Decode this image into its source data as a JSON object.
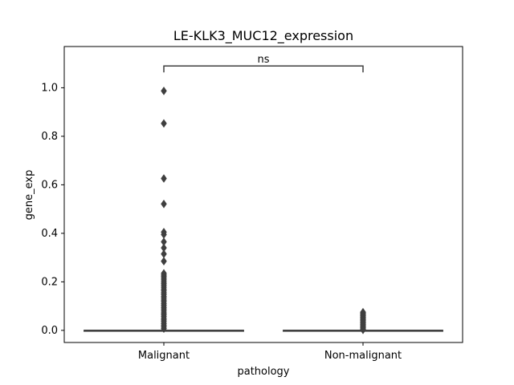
{
  "chart_data": {
    "type": "box",
    "title": "LE-KLK3_MUC12_expression",
    "xlabel": "pathology",
    "ylabel": "gene_exp",
    "categories": [
      "Malignant",
      "Non-malignant"
    ],
    "ylim": [
      -0.05,
      1.17
    ],
    "yticks": [
      0.0,
      0.2,
      0.4,
      0.6,
      0.8,
      1.0
    ],
    "ytick_labels": [
      "0.0",
      "0.2",
      "0.4",
      "0.6",
      "0.8",
      "1.0"
    ],
    "grid": false,
    "legend": "none",
    "colors": {
      "box": "#3f3f3f",
      "outlier": "#3f3f3f",
      "axis": "#000000"
    },
    "boxes": [
      {
        "category": "Malignant",
        "q1": 0.0,
        "median": 0.0,
        "q3": 0.0,
        "whisker_low": 0.0,
        "whisker_high": 0.0,
        "outliers": [
          0.987,
          0.853,
          0.626,
          0.521,
          0.405,
          0.395,
          0.365,
          0.34,
          0.315,
          0.285,
          0.235,
          0.228,
          0.222,
          0.215,
          0.208,
          0.2,
          0.193,
          0.186,
          0.178,
          0.17,
          0.163,
          0.155,
          0.148,
          0.14,
          0.133,
          0.125,
          0.118,
          0.11,
          0.103,
          0.095,
          0.088,
          0.08,
          0.072,
          0.065,
          0.058,
          0.05,
          0.043,
          0.036,
          0.028,
          0.021,
          0.014,
          0.007
        ]
      },
      {
        "category": "Non-malignant",
        "q1": 0.0,
        "median": 0.0,
        "q3": 0.0,
        "whisker_low": 0.0,
        "whisker_high": 0.0,
        "outliers": [
          0.075,
          0.07,
          0.065,
          0.06,
          0.055,
          0.05,
          0.045,
          0.04,
          0.035,
          0.03,
          0.025,
          0.02,
          0.015,
          0.01,
          0.005,
          0.002
        ]
      }
    ],
    "annotations": [
      {
        "text": "ns",
        "between": [
          "Malignant",
          "Non-malignant"
        ],
        "y": 1.09
      }
    ]
  }
}
